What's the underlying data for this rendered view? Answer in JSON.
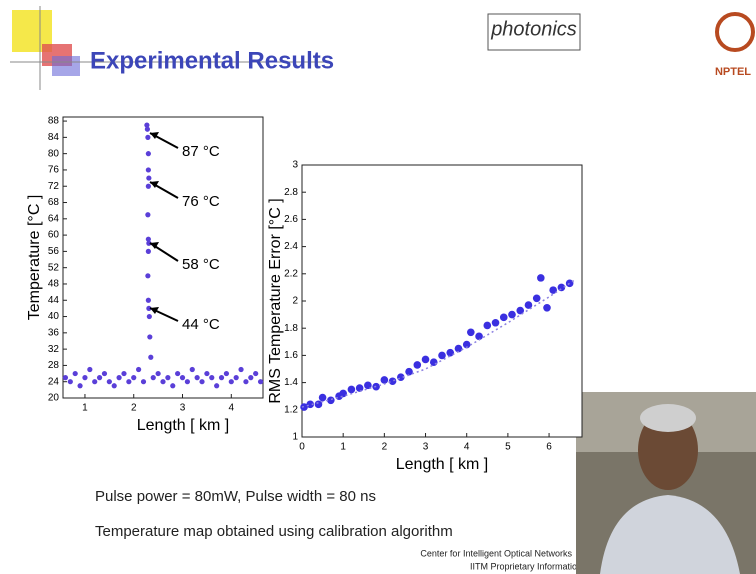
{
  "slide": {
    "title": "Experimental Results",
    "logo": "photonics",
    "nptel": "NPTEL",
    "notes": [
      "Pulse power = 80mW, Pulse width = 80 ns",
      "Temperature map obtained using calibration algorithm"
    ],
    "footer": [
      "Center for Intelligent Optical Networks",
      "IITM Proprietary Information"
    ]
  },
  "chart_data": [
    {
      "type": "scatter",
      "xlabel": "Length [ km ]",
      "ylabel": "Temperature [°C ]",
      "xlim": [
        0.55,
        4.65
      ],
      "xticks": [
        1,
        2,
        3,
        4
      ],
      "ylim": [
        20,
        89
      ],
      "yticks": [
        20,
        24,
        28,
        32,
        36,
        40,
        44,
        48,
        52,
        56,
        60,
        64,
        68,
        72,
        76,
        80,
        84,
        88
      ],
      "annotations": [
        "87 °C",
        "76 °C",
        "58 °C",
        "44 °C"
      ],
      "series": [
        {
          "color": "#5a3fd8",
          "x": [
            0.6,
            0.7,
            0.8,
            0.9,
            1.0,
            1.1,
            1.2,
            1.3,
            1.4,
            1.5,
            1.6,
            1.7,
            1.8,
            1.9,
            2.0,
            2.1,
            2.2,
            2.27,
            2.28,
            2.29,
            2.3,
            2.3,
            2.31,
            2.3,
            2.29,
            2.3,
            2.31,
            2.3,
            2.29,
            2.3,
            2.31,
            2.32,
            2.33,
            2.35,
            2.4,
            2.5,
            2.6,
            2.7,
            2.8,
            2.9,
            3.0,
            3.1,
            3.2,
            3.3,
            3.4,
            3.5,
            3.6,
            3.7,
            3.8,
            3.9,
            4.0,
            4.1,
            4.2,
            4.3,
            4.4,
            4.5,
            4.6
          ],
          "values": [
            25,
            24,
            26,
            23,
            25,
            27,
            24,
            25,
            26,
            24,
            23,
            25,
            26,
            24,
            25,
            27,
            24,
            87,
            86,
            84,
            80,
            76,
            74,
            72,
            65,
            59,
            58,
            56,
            50,
            44,
            42,
            40,
            35,
            30,
            25,
            26,
            24,
            25,
            23,
            26,
            25,
            24,
            27,
            25,
            24,
            26,
            25,
            23,
            25,
            26,
            24,
            25,
            27,
            24,
            25,
            26,
            24
          ]
        }
      ]
    },
    {
      "type": "scatter",
      "xlabel": "Length [ km ]",
      "ylabel": "RMS Temperature Error [°C ]",
      "xlim": [
        0,
        6.8
      ],
      "xticks": [
        0,
        1,
        2,
        3,
        4,
        5,
        6
      ],
      "ylim": [
        1,
        3
      ],
      "yticks": [
        1,
        1.2,
        1.4,
        1.6,
        1.8,
        2,
        2.2,
        2.4,
        2.6,
        2.8,
        3
      ],
      "series": [
        {
          "color": "#3a2fe0",
          "x": [
            0.05,
            0.2,
            0.4,
            0.5,
            0.7,
            0.9,
            1.0,
            1.2,
            1.4,
            1.6,
            1.8,
            2.0,
            2.2,
            2.4,
            2.6,
            2.8,
            3.0,
            3.2,
            3.4,
            3.6,
            3.8,
            4.0,
            4.1,
            4.3,
            4.5,
            4.7,
            4.9,
            5.1,
            5.3,
            5.5,
            5.7,
            5.8,
            5.95,
            6.1,
            6.3,
            6.5
          ],
          "values": [
            1.22,
            1.24,
            1.24,
            1.29,
            1.27,
            1.3,
            1.32,
            1.35,
            1.36,
            1.38,
            1.37,
            1.42,
            1.41,
            1.44,
            1.48,
            1.53,
            1.57,
            1.55,
            1.6,
            1.62,
            1.65,
            1.68,
            1.77,
            1.74,
            1.82,
            1.84,
            1.88,
            1.9,
            1.93,
            1.97,
            2.02,
            2.17,
            1.95,
            2.08,
            2.1,
            2.13
          ]
        },
        {
          "color": "#8a7fe0",
          "style": "dotted",
          "x": [
            0,
            1,
            2,
            3,
            4,
            5,
            6,
            6.6
          ],
          "values": [
            1.22,
            1.3,
            1.39,
            1.5,
            1.66,
            1.84,
            2.03,
            2.15
          ]
        }
      ]
    }
  ]
}
